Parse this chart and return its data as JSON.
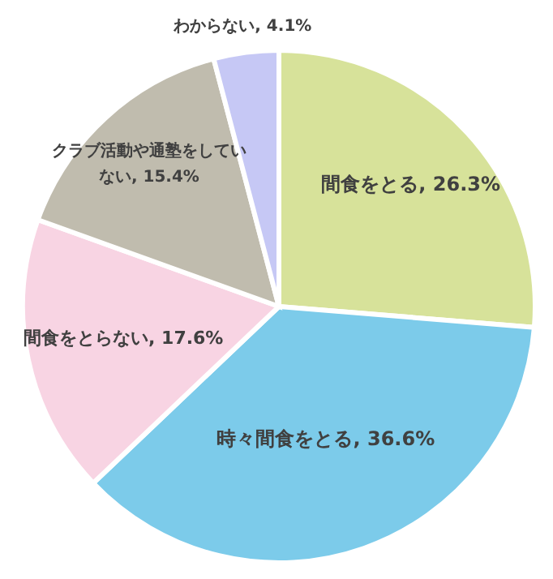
{
  "chart_data": {
    "type": "pie",
    "categories": [
      "間食をとる",
      "時々間食をとる",
      "間食をとらない",
      "クラブ活動や通塾をしていない",
      "わからない"
    ],
    "values": [
      26.3,
      36.6,
      17.6,
      15.4,
      4.1
    ],
    "value_labels": [
      "26.3%",
      "36.6%",
      "17.6%",
      "15.4%",
      "4.1%"
    ],
    "colors": [
      "#d7e29a",
      "#7ccbea",
      "#f8d4e3",
      "#c0bcae",
      "#c6c8f5"
    ]
  }
}
